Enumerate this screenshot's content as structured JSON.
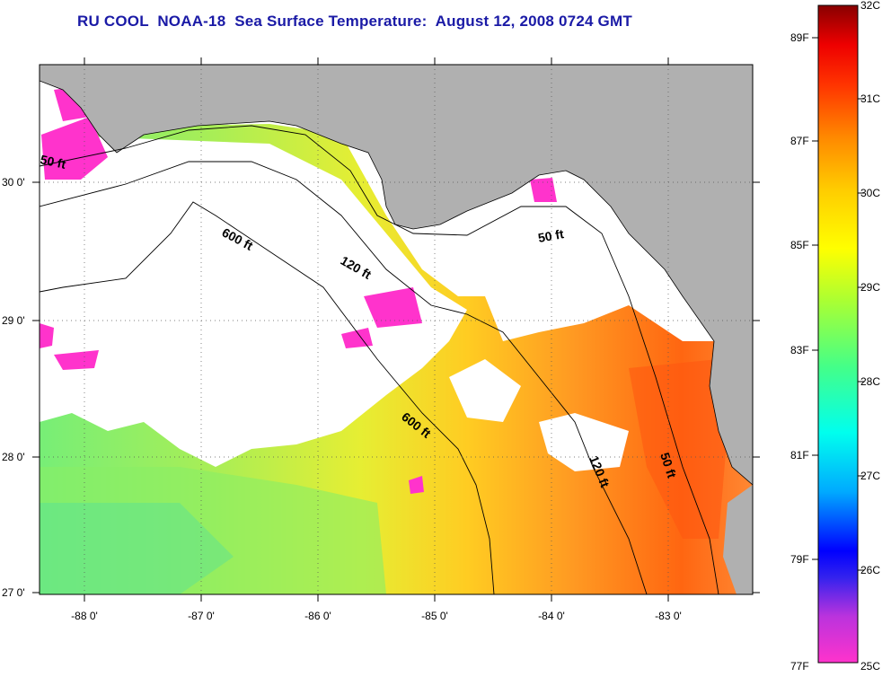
{
  "title": "RU COOL  NOAA-18  Sea Surface Temperature:  August 12, 2008 0724 GMT",
  "colors": {
    "land": "#b0b0b0",
    "cloud": "#ffffff",
    "frame": "#000000",
    "title": "#1a1aa6"
  },
  "axes": {
    "lon_ticks": [
      "-88 0'",
      "-87 0'",
      "-86 0'",
      "-85 0'",
      "-84 0'",
      "-83 0'"
    ],
    "lat_ticks": [
      "30 0'",
      "29 0'",
      "28 0'",
      "27 0'"
    ]
  },
  "contours": [
    "600 ft",
    "120 ft",
    "50 ft",
    "600 ft",
    "120 ft",
    "50 ft",
    "50 ft"
  ],
  "colorbar": {
    "celsius": [
      "32C",
      "31C",
      "30C",
      "29C",
      "28C",
      "27C",
      "26C",
      "25C"
    ],
    "fahrenheit": [
      "89F",
      "87F",
      "85F",
      "83F",
      "81F",
      "79F",
      "77F"
    ],
    "stops": [
      "#ff33cc",
      "#8833ee",
      "#0000ff",
      "#00ccff",
      "#00ffcc",
      "#88ff44",
      "#ffff00",
      "#ffaa00",
      "#ff5500",
      "#ff0000",
      "#880000"
    ]
  }
}
